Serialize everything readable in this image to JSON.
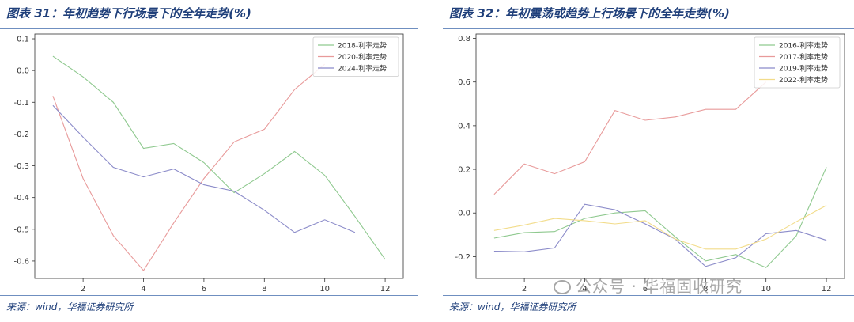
{
  "panels": [
    {
      "title": "图表 31：年初趋势下行场景下的全年走势(%)",
      "source": "来源：wind，华福证券研究所",
      "chart_data": {
        "type": "line",
        "title": "",
        "xlabel": "",
        "ylabel": "",
        "xlim": [
          0.4,
          12.6
        ],
        "ylim": [
          -0.655,
          0.115
        ],
        "xticks": [
          2,
          4,
          6,
          8,
          10,
          12
        ],
        "yticks": [
          0.1,
          0.0,
          -0.1,
          -0.2,
          -0.3,
          -0.4,
          -0.5,
          -0.6
        ],
        "ytick_labels": [
          "0.1",
          "0.0",
          "-0.1",
          "-0.2",
          "-0.3",
          "-0.4",
          "-0.5",
          "-0.6"
        ],
        "legend_position": "top-right",
        "series": [
          {
            "name": "2018-利率走势",
            "color": "#8fc98f",
            "x": [
              1,
              2,
              3,
              4,
              5,
              6,
              7,
              8,
              9,
              10,
              11,
              12
            ],
            "y": [
              0.045,
              -0.02,
              -0.1,
              -0.245,
              -0.23,
              -0.29,
              -0.385,
              -0.325,
              -0.255,
              -0.33,
              -0.46,
              -0.595
            ]
          },
          {
            "name": "2020-利率走势",
            "color": "#e89a9a",
            "x": [
              1,
              2,
              3,
              4,
              5,
              6,
              7,
              8,
              9,
              10
            ],
            "y": [
              -0.08,
              -0.34,
              -0.52,
              -0.63,
              -0.48,
              -0.34,
              -0.225,
              -0.185,
              -0.06,
              0.02
            ]
          },
          {
            "name": "2024-利率走势",
            "color": "#8b8bc9",
            "x": [
              1,
              2,
              3,
              4,
              5,
              6,
              7,
              8,
              9,
              10,
              11
            ],
            "y": [
              -0.11,
              -0.21,
              -0.305,
              -0.335,
              -0.31,
              -0.36,
              -0.38,
              -0.44,
              -0.51,
              -0.47,
              -0.51
            ]
          }
        ]
      }
    },
    {
      "title": "图表 32：年初震荡或趋势上行场景下的全年走势(%)",
      "source": "来源：wind，华福证券研究所",
      "chart_data": {
        "type": "line",
        "title": "",
        "xlabel": "",
        "ylabel": "",
        "xlim": [
          0.4,
          12.6
        ],
        "ylim": [
          -0.3,
          0.82
        ],
        "xticks": [
          2,
          4,
          6,
          8,
          10,
          12
        ],
        "yticks": [
          0.8,
          0.6,
          0.4,
          0.2,
          0.0,
          -0.2
        ],
        "ytick_labels": [
          "0.8",
          "0.6",
          "0.4",
          "0.2",
          "0.0",
          "-0.2"
        ],
        "legend_position": "top-right",
        "series": [
          {
            "name": "2016-利率走势",
            "color": "#8fc98f",
            "x": [
              1,
              2,
              3,
              4,
              5,
              6,
              7,
              8,
              9,
              10,
              11,
              12
            ],
            "y": [
              -0.115,
              -0.09,
              -0.085,
              -0.025,
              0.0,
              0.01,
              -0.11,
              -0.22,
              -0.19,
              -0.25,
              -0.105,
              0.21
            ]
          },
          {
            "name": "2017-利率走势",
            "color": "#e89a9a",
            "x": [
              1,
              2,
              3,
              4,
              5,
              6,
              7,
              8,
              9,
              10
            ],
            "y": [
              0.085,
              0.225,
              0.18,
              0.235,
              0.47,
              0.425,
              0.44,
              0.475,
              0.475,
              0.6
            ]
          },
          {
            "name": "2019-利率走势",
            "color": "#8b8bc9",
            "x": [
              1,
              2,
              3,
              4,
              5,
              6,
              7,
              8,
              9,
              10,
              11,
              12
            ],
            "y": [
              -0.175,
              -0.178,
              -0.16,
              0.04,
              0.015,
              -0.05,
              -0.12,
              -0.245,
              -0.205,
              -0.095,
              -0.08,
              -0.125
            ]
          },
          {
            "name": "2022-利率走势",
            "color": "#f2dc8a",
            "x": [
              1,
              2,
              3,
              4,
              5,
              6,
              7,
              8,
              9,
              10,
              11,
              12
            ],
            "y": [
              -0.08,
              -0.055,
              -0.025,
              -0.035,
              -0.05,
              -0.035,
              -0.12,
              -0.165,
              -0.165,
              -0.12,
              -0.04,
              0.035
            ]
          }
        ]
      }
    }
  ],
  "watermark": {
    "text": "公众号 · 华福固收研究",
    "icon": "wechat-icon"
  }
}
